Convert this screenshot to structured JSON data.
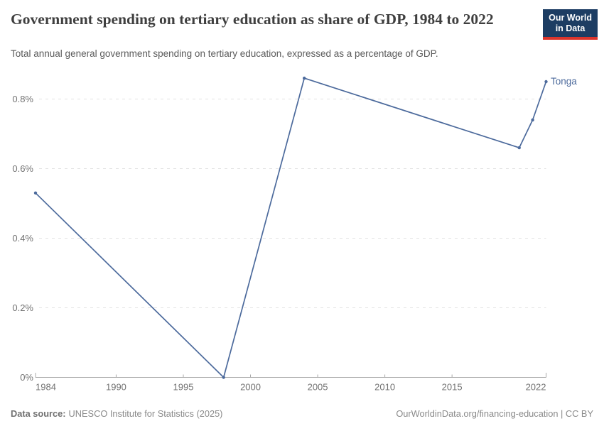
{
  "header": {
    "title": "Government spending on tertiary education as share of GDP, 1984 to 2022",
    "logo": {
      "line1": "Our World",
      "line2": "in Data"
    }
  },
  "subtitle": "Total annual general government spending on tertiary education, expressed as a percentage of GDP.",
  "chart_data": {
    "type": "line",
    "title": "Government spending on tertiary education as share of GDP, 1984 to 2022",
    "entity": "Tonga",
    "xlabel": "",
    "ylabel": "",
    "xlim": [
      1984,
      2022
    ],
    "ylim": [
      0,
      0.88
    ],
    "grid": "horizontal-dashed",
    "legend_position": "end-of-line-label",
    "x_ticks": [
      1984,
      1990,
      1995,
      2000,
      2005,
      2010,
      2015,
      2022
    ],
    "y_ticks": [
      {
        "value": 0,
        "label": "0%"
      },
      {
        "value": 0.2,
        "label": "0.2%"
      },
      {
        "value": 0.4,
        "label": "0.4%"
      },
      {
        "value": 0.6,
        "label": "0.6%"
      },
      {
        "value": 0.8,
        "label": "0.8%"
      }
    ],
    "series": [
      {
        "name": "Tonga",
        "color": "#4c6a9c",
        "points": [
          {
            "year": 1984,
            "value": 0.53
          },
          {
            "year": 1998,
            "value": 0.0
          },
          {
            "year": 2004,
            "value": 0.86
          },
          {
            "year": 2020,
            "value": 0.66
          },
          {
            "year": 2021,
            "value": 0.74
          },
          {
            "year": 2022,
            "value": 0.85
          }
        ]
      }
    ]
  },
  "footer": {
    "source_label": "Data source:",
    "source": "UNESCO Institute for Statistics (2025)",
    "url": "OurWorldinData.org/financing-education",
    "separator": " | ",
    "license": "CC BY"
  }
}
